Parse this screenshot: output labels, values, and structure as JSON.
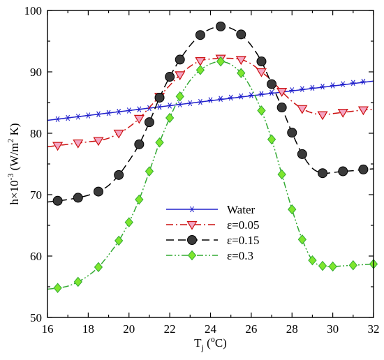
{
  "chart_data": {
    "type": "line",
    "xlabel": {
      "base": "T",
      "sub": "j",
      "open": " (",
      "sup": "o",
      "unit": "C)"
    },
    "ylabel": {
      "a": "h×10",
      "sup1": "-3",
      "b": " (W/m",
      "sup2": "2",
      "c": " K)"
    },
    "xlim": [
      16,
      32
    ],
    "ylim": [
      50,
      100
    ],
    "xticks": [
      "16",
      "18",
      "20",
      "22",
      "24",
      "26",
      "28",
      "30",
      "32"
    ],
    "yticks": [
      "50",
      "60",
      "70",
      "80",
      "90",
      "100"
    ],
    "legend_position": "center-left",
    "series": [
      {
        "name": "Water",
        "color": "#2222cc",
        "dash": "solid",
        "marker": "star",
        "x": [
          16.5,
          17,
          17.5,
          18,
          18.5,
          19,
          19.5,
          20,
          20.5,
          21,
          21.5,
          22,
          22.5,
          23,
          23.5,
          24,
          24.5,
          25,
          25.5,
          26,
          26.5,
          27,
          27.5,
          28,
          28.5,
          29,
          29.5,
          30,
          30.5,
          31,
          31.5
        ],
        "values": [
          82.3,
          82.5,
          82.7,
          82.9,
          83.1,
          83.3,
          83.5,
          83.7,
          83.9,
          84.1,
          84.3,
          84.5,
          84.7,
          84.9,
          85.1,
          85.4,
          85.6,
          85.8,
          86.0,
          86.2,
          86.4,
          86.6,
          86.8,
          87.0,
          87.2,
          87.4,
          87.6,
          87.8,
          88.0,
          88.2,
          88.4
        ],
        "curve_x": [
          16,
          32
        ],
        "curve_y": [
          82.1,
          88.5
        ]
      },
      {
        "name": "ε=0.05",
        "color": "#cc1111",
        "dash": "dashdot",
        "marker": "triangle-down",
        "marker_fill": "#f4a6c4",
        "x": [
          16.5,
          17.5,
          18.5,
          19.5,
          20.5,
          21.5,
          22.5,
          23.5,
          24.5,
          25.5,
          26.5,
          27.5,
          28.5,
          29.5,
          30.5,
          31.5
        ],
        "values": [
          78.0,
          78.4,
          78.8,
          80.0,
          82.4,
          86.0,
          89.5,
          91.8,
          92.2,
          92.0,
          90.0,
          86.8,
          84.0,
          83.0,
          83.4,
          83.8
        ],
        "curve_x": [
          16,
          16.5,
          17,
          17.5,
          18,
          18.5,
          19,
          19.5,
          20,
          20.5,
          21,
          21.5,
          22,
          22.5,
          23,
          23.5,
          24,
          24.5,
          25,
          25.5,
          26,
          26.5,
          27,
          27.5,
          28,
          28.5,
          29,
          29.5,
          30,
          30.5,
          31,
          31.5,
          32
        ],
        "curve_y": [
          77.8,
          78.0,
          78.2,
          78.4,
          78.6,
          78.8,
          79.2,
          80.0,
          81.0,
          82.4,
          84.2,
          86.0,
          87.8,
          89.5,
          90.9,
          91.8,
          92.1,
          92.2,
          92.2,
          92.0,
          91.3,
          90.0,
          88.6,
          86.8,
          85.2,
          84.0,
          83.3,
          83.0,
          83.2,
          83.4,
          83.6,
          83.8,
          83.9
        ]
      },
      {
        "name": "ε=0.15",
        "color": "#000000",
        "dash": "dashed",
        "marker": "circle",
        "marker_fill": "#3a3a3a",
        "x": [
          16.5,
          17.5,
          18.5,
          19.5,
          20.5,
          21,
          21.5,
          22,
          22.5,
          23.5,
          24.5,
          25.5,
          26.5,
          27,
          27.5,
          28,
          28.5,
          29.5,
          30.5,
          31.5
        ],
        "values": [
          69.0,
          69.5,
          70.5,
          73.2,
          78.2,
          81.8,
          85.8,
          89.2,
          92.0,
          96.0,
          97.4,
          96.1,
          91.7,
          88.0,
          84.2,
          80.1,
          76.6,
          73.5,
          73.8,
          74.1
        ],
        "curve_x": [
          16,
          16.5,
          17,
          17.5,
          18,
          18.5,
          19,
          19.5,
          20,
          20.5,
          21,
          21.5,
          22,
          22.5,
          23,
          23.5,
          24,
          24.5,
          25,
          25.5,
          26,
          26.5,
          27,
          27.5,
          28,
          28.5,
          29,
          29.5,
          30,
          30.5,
          31,
          31.5,
          32
        ],
        "curve_y": [
          68.8,
          69.0,
          69.2,
          69.5,
          69.9,
          70.5,
          71.5,
          73.2,
          75.5,
          78.2,
          81.8,
          85.8,
          89.2,
          92.0,
          94.3,
          96.0,
          97.0,
          97.4,
          97.1,
          96.1,
          94.3,
          91.7,
          88.0,
          84.2,
          80.1,
          76.6,
          74.3,
          73.5,
          73.6,
          73.8,
          73.9,
          74.1,
          74.2
        ]
      },
      {
        "name": "ε=0.3",
        "color": "#33aa33",
        "dash": "dashdotdot",
        "marker": "diamond",
        "marker_fill": "#7ee62e",
        "x": [
          16.5,
          17.5,
          18.5,
          19.5,
          20,
          20.5,
          21,
          21.5,
          22,
          22.5,
          23.5,
          24.5,
          25.5,
          26.5,
          27,
          27.5,
          28,
          28.5,
          29,
          29.5,
          30,
          31,
          32
        ],
        "values": [
          54.8,
          55.8,
          58.2,
          62.5,
          65.5,
          69.2,
          73.8,
          78.5,
          82.5,
          86.0,
          90.3,
          91.7,
          89.8,
          83.7,
          79.0,
          73.3,
          67.6,
          62.7,
          59.3,
          58.4,
          58.3,
          58.5,
          58.7
        ],
        "curve_x": [
          16,
          16.5,
          17,
          17.5,
          18,
          18.5,
          19,
          19.5,
          20,
          20.5,
          21,
          21.5,
          22,
          22.5,
          23,
          23.5,
          24,
          24.5,
          25,
          25.5,
          26,
          26.5,
          27,
          27.5,
          28,
          28.5,
          29,
          29.5,
          30,
          30.5,
          31,
          31.5,
          32
        ],
        "curve_y": [
          54.6,
          54.8,
          55.1,
          55.8,
          56.8,
          58.2,
          60.2,
          62.5,
          65.5,
          69.2,
          73.8,
          78.5,
          82.5,
          86.0,
          88.6,
          90.3,
          91.3,
          91.7,
          91.2,
          89.8,
          87.3,
          83.7,
          79.0,
          73.3,
          67.6,
          62.7,
          59.3,
          58.4,
          58.3,
          58.4,
          58.5,
          58.6,
          58.7
        ]
      }
    ]
  }
}
